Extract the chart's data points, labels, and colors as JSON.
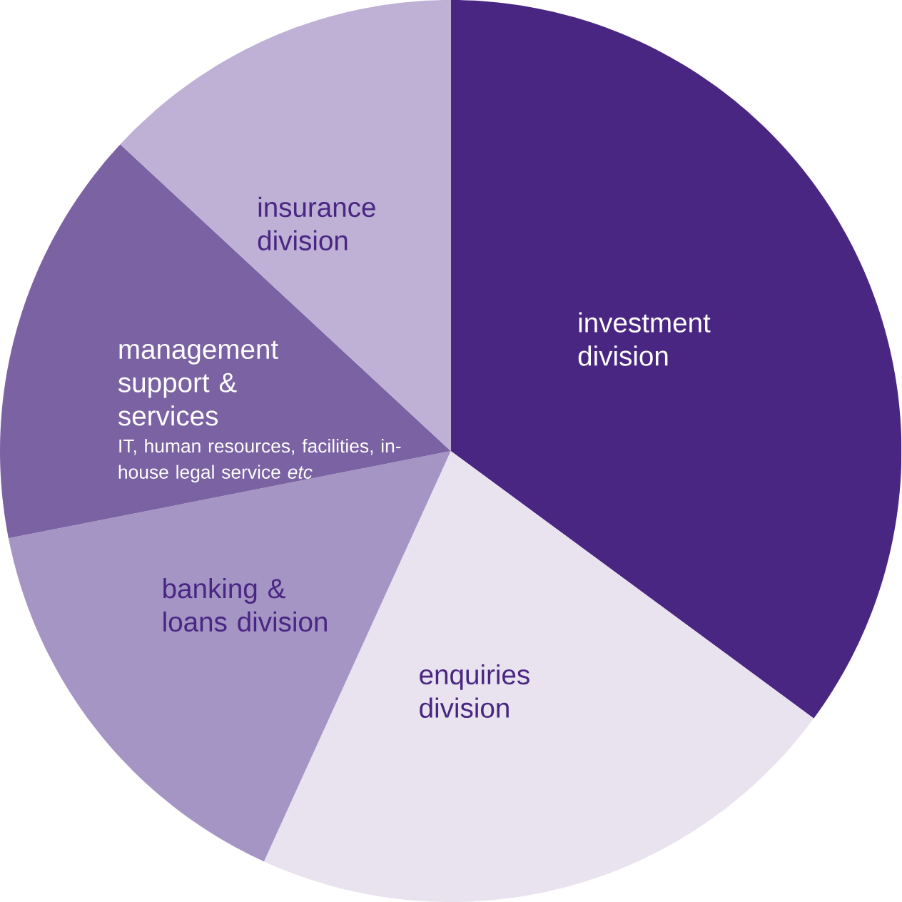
{
  "chart_data": {
    "type": "pie",
    "categories": [
      "investment division",
      "enquiries division",
      "banking & loans division",
      "management support & services",
      "insurance division"
    ],
    "values": [
      35.1,
      21.7,
      15.1,
      15.0,
      13.1
    ],
    "colors": [
      "#4a2683",
      "#e8e3ef",
      "#a595c5",
      "#7b62a3",
      "#bfb1d6"
    ],
    "annotations": [
      "IT, human resources, facilities, in-house legal service *etc*"
    ]
  }
}
